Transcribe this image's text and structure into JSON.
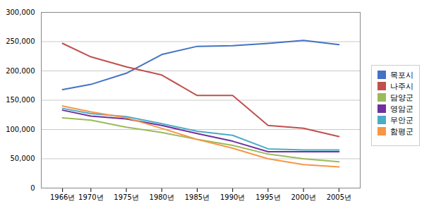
{
  "chart_data": {
    "type": "line",
    "x": [
      1966,
      1970,
      1975,
      1980,
      1985,
      1990,
      1995,
      2000,
      2005
    ],
    "series": [
      {
        "name": "목포시",
        "color": "#4472C4",
        "values": [
          168000,
          177000,
          196000,
          228000,
          242000,
          243000,
          247000,
          252000,
          245000
        ]
      },
      {
        "name": "나주시",
        "color": "#C0504D",
        "values": [
          247000,
          224000,
          207000,
          193000,
          158000,
          158000,
          107000,
          102000,
          88000
        ]
      },
      {
        "name": "담양군",
        "color": "#9BBB59",
        "values": [
          120000,
          116000,
          104000,
          95000,
          83000,
          73000,
          58000,
          50000,
          45000
        ]
      },
      {
        "name": "영암군",
        "color": "#7030A0",
        "values": [
          133000,
          123000,
          118000,
          107000,
          93000,
          80000,
          62000,
          62000,
          62000
        ]
      },
      {
        "name": "무안군",
        "color": "#4BACC6",
        "values": [
          136000,
          127000,
          122000,
          110000,
          97000,
          90000,
          67000,
          65000,
          65000
        ]
      },
      {
        "name": "함평군",
        "color": "#F79646",
        "values": [
          140000,
          130000,
          120000,
          102000,
          83000,
          68000,
          50000,
          40000,
          36000
        ]
      }
    ],
    "xlim": [
      1963,
      2008
    ],
    "xticks": [
      {
        "value": 1966,
        "label": "1966년"
      },
      {
        "value": 1970,
        "label": "1970년"
      },
      {
        "value": 1975,
        "label": "1975년"
      },
      {
        "value": 1980,
        "label": "1980년"
      },
      {
        "value": 1985,
        "label": "1985년"
      },
      {
        "value": 1990,
        "label": "1990년"
      },
      {
        "value": 1995,
        "label": "1995년"
      },
      {
        "value": 2000,
        "label": "2000년"
      },
      {
        "value": 2005,
        "label": "2005년"
      }
    ],
    "ylim": [
      0,
      300000
    ],
    "yticks": [
      0,
      {
        "value": 50000,
        "label": "50,000"
      },
      {
        "value": 100000,
        "label": "100,000"
      },
      {
        "value": 150000,
        "label": "150,000"
      },
      {
        "value": 200000,
        "label": "200,000"
      },
      {
        "value": 250000,
        "label": "250,000"
      },
      {
        "value": 300000,
        "label": "300,000"
      }
    ],
    "grid": true,
    "legend": "right"
  }
}
